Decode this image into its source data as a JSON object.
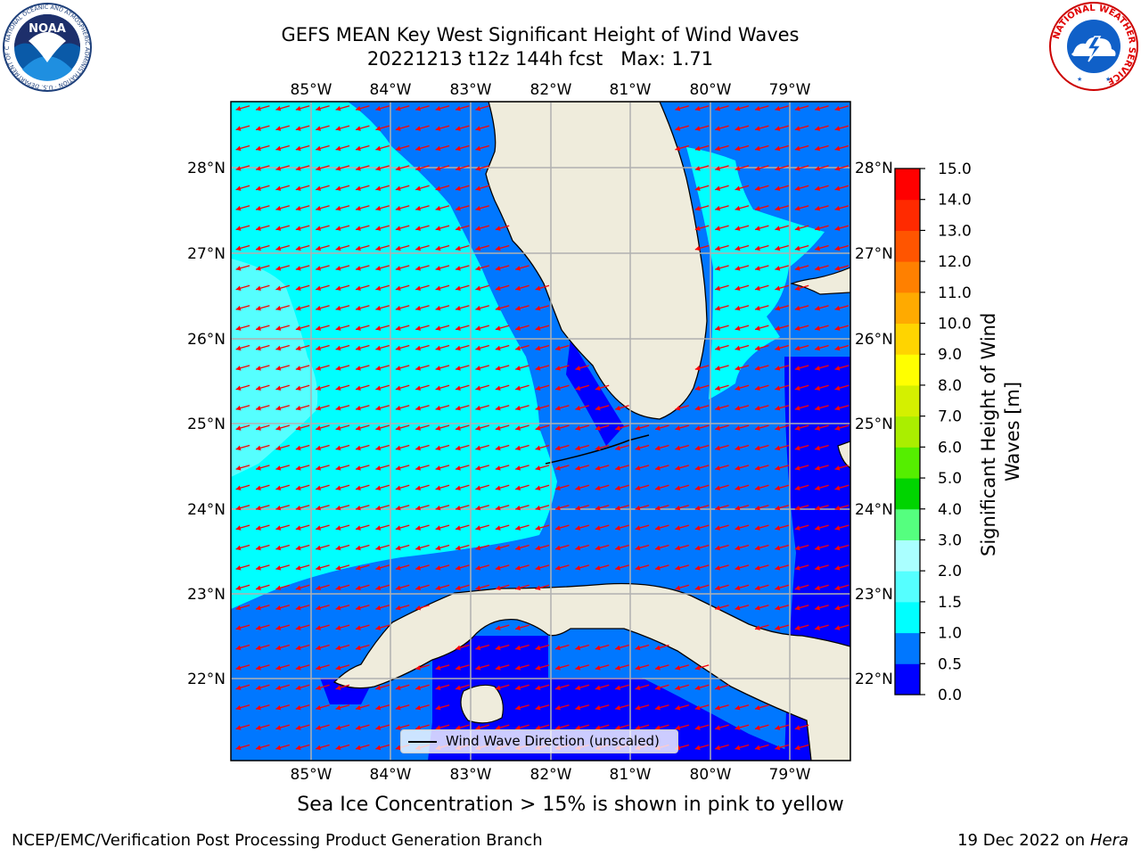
{
  "header": {
    "title_line1": "GEFS MEAN Key West Significant Height of Wind Waves",
    "title_line2": "20221213 t12z 144h fcst   Max: 1.71"
  },
  "logos": {
    "noaa_text": "NOAA",
    "noaa_ring_text": "NATIONAL OCEANIC AND ATMOSPHERIC ADMINISTRATION · U.S. DEPARTMENT OF COMMERCE",
    "nws_ring_text": "NATIONAL WEATHER SERVICE"
  },
  "map": {
    "lon_labels": [
      "85°W",
      "84°W",
      "83°W",
      "82°W",
      "81°W",
      "80°W",
      "79°W"
    ],
    "lat_labels": [
      "28°N",
      "27°N",
      "26°N",
      "25°N",
      "24°N",
      "23°N",
      "22°N"
    ],
    "legend_label": "Wind Wave Direction (unscaled)",
    "wave_direction": "toward southwest",
    "land_color": "#efecdc",
    "arrow_color": "#ff0000"
  },
  "colorbar": {
    "title": "Significant Height of Wind Waves [m]",
    "ticks": [
      "0.0",
      "0.5",
      "1.0",
      "1.5",
      "2.0",
      "3.0",
      "4.0",
      "5.0",
      "6.0",
      "7.0",
      "8.0",
      "9.0",
      "10.0",
      "11.0",
      "12.0",
      "13.0",
      "14.0",
      "15.0"
    ],
    "colors": [
      "#0000ff",
      "#0077ff",
      "#00ffff",
      "#55ffff",
      "#aaffff",
      "#55ff7f",
      "#00d400",
      "#55ee00",
      "#aaee00",
      "#d4f000",
      "#ffff00",
      "#ffd400",
      "#ffaa00",
      "#ff8000",
      "#ff5500",
      "#ff2a00",
      "#ff0000"
    ]
  },
  "notes": {
    "sea_ice": "Sea Ice Concentration > 15% is shown in pink to yellow"
  },
  "footer": {
    "left": "NCEP/EMC/Verification Post Processing Product Generation Branch",
    "date": "19 Dec 2022 on",
    "machine": "Hera"
  }
}
